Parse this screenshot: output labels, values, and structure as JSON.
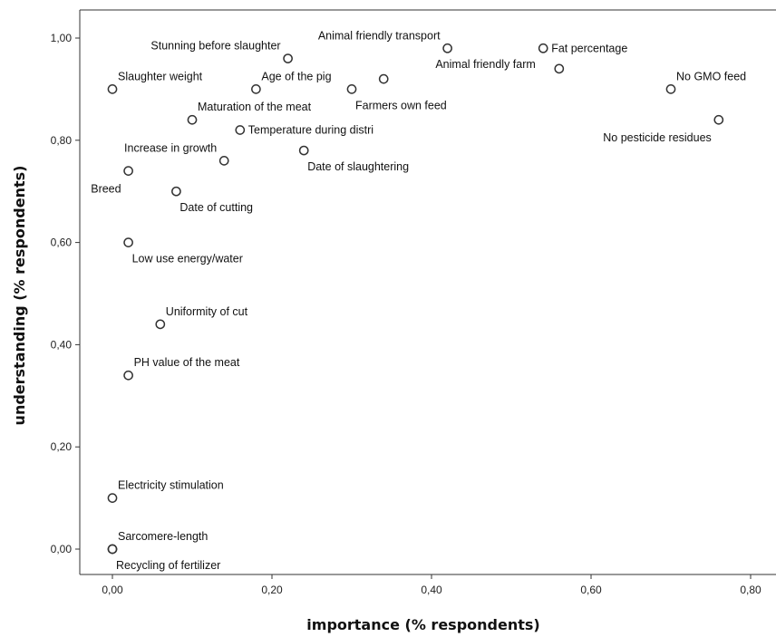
{
  "chart_data": {
    "type": "scatter",
    "xlabel": "importance (% respondents)",
    "ylabel": "understanding (% respondents)",
    "xlim": [
      -0.04,
      0.84
    ],
    "ylim": [
      -0.05,
      1.06
    ],
    "x_ticks": [
      {
        "value": 0.0,
        "label": "0,00"
      },
      {
        "value": 0.2,
        "label": "0,20"
      },
      {
        "value": 0.4,
        "label": "0,40"
      },
      {
        "value": 0.6,
        "label": "0,60"
      },
      {
        "value": 0.8,
        "label": "0,80"
      }
    ],
    "y_ticks": [
      {
        "value": 0.0,
        "label": "0,00"
      },
      {
        "value": 0.2,
        "label": "0,20"
      },
      {
        "value": 0.4,
        "label": "0,40"
      },
      {
        "value": 0.6,
        "label": "0,60"
      },
      {
        "value": 0.8,
        "label": "0,80"
      },
      {
        "value": 1.0,
        "label": "1,00"
      }
    ],
    "grid": false,
    "points": [
      {
        "label": "Stunning before slaughter",
        "x": 0.22,
        "y": 0.96,
        "label_pos": "above-left"
      },
      {
        "label": "Animal friendly transport",
        "x": 0.42,
        "y": 0.98,
        "label_pos": "above-left"
      },
      {
        "label": "Fat percentage",
        "x": 0.54,
        "y": 0.98,
        "label_pos": "right"
      },
      {
        "label": "Animal friendly farm",
        "x": 0.56,
        "y": 0.94,
        "label_pos": "left"
      },
      {
        "label": "No GMO feed",
        "x": 0.7,
        "y": 0.9,
        "label_pos": "above-right"
      },
      {
        "label": "No pesticide residues",
        "x": 0.76,
        "y": 0.84,
        "label_pos": "below-left"
      },
      {
        "label": "Slaughter weight",
        "x": 0.0,
        "y": 0.9,
        "label_pos": "above-right"
      },
      {
        "label": "Age of the pig",
        "x": 0.18,
        "y": 0.9,
        "label_pos": "above-right"
      },
      {
        "label": "Farmers own feed",
        "x": 0.3,
        "y": 0.9,
        "label_pos": "below-right"
      },
      {
        "label": "",
        "x": 0.34,
        "y": 0.92,
        "label_pos": "none"
      },
      {
        "label": "Maturation of the meat",
        "x": 0.1,
        "y": 0.84,
        "label_pos": "above-right"
      },
      {
        "label": "Temperature during distri",
        "x": 0.16,
        "y": 0.82,
        "label_pos": "right"
      },
      {
        "label": "Date of slaughtering",
        "x": 0.24,
        "y": 0.78,
        "label_pos": "below-right"
      },
      {
        "label": "Increase in growth",
        "x": 0.14,
        "y": 0.76,
        "label_pos": "above-left"
      },
      {
        "label": "Breed",
        "x": 0.02,
        "y": 0.74,
        "label_pos": "below-left"
      },
      {
        "label": "Date of cutting",
        "x": 0.08,
        "y": 0.7,
        "label_pos": "below-right"
      },
      {
        "label": "Low use energy/water",
        "x": 0.02,
        "y": 0.6,
        "label_pos": "below-right"
      },
      {
        "label": "Uniformity of cut",
        "x": 0.06,
        "y": 0.44,
        "label_pos": "above-right"
      },
      {
        "label": "PH value of the meat",
        "x": 0.02,
        "y": 0.34,
        "label_pos": "above-right"
      },
      {
        "label": "Electricity stimulation",
        "x": 0.0,
        "y": 0.1,
        "label_pos": "above-right"
      },
      {
        "label": "Sarcomere-length",
        "x": 0.0,
        "y": 0.0,
        "label_pos": "above-right"
      },
      {
        "label": "Recycling of fertilizer",
        "x": 0.0,
        "y": 0.0,
        "label_pos": "below-right"
      }
    ]
  }
}
